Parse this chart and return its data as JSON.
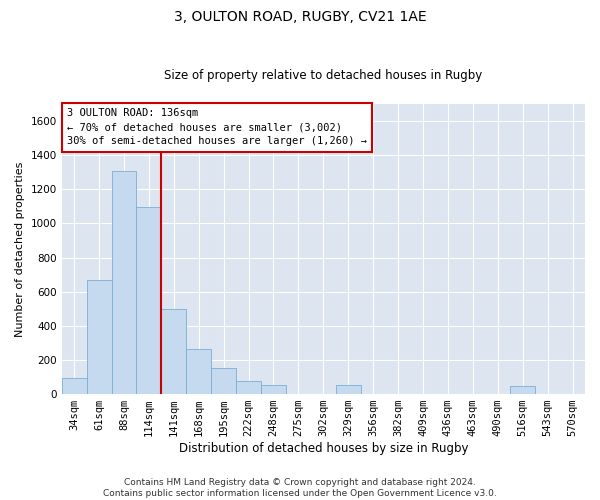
{
  "title": "3, OULTON ROAD, RUGBY, CV21 1AE",
  "subtitle": "Size of property relative to detached houses in Rugby",
  "xlabel": "Distribution of detached houses by size in Rugby",
  "ylabel": "Number of detached properties",
  "footer_line1": "Contains HM Land Registry data © Crown copyright and database right 2024.",
  "footer_line2": "Contains public sector information licensed under the Open Government Licence v3.0.",
  "annotation_line1": "3 OULTON ROAD: 136sqm",
  "annotation_line2": "← 70% of detached houses are smaller (3,002)",
  "annotation_line3": "30% of semi-detached houses are larger (1,260) →",
  "bar_color": "#c5d9ef",
  "bar_edge_color": "#7aafd4",
  "vline_color": "#cc0000",
  "background_color": "#dde5f0",
  "grid_color": "#ffffff",
  "categories": [
    "34sqm",
    "61sqm",
    "88sqm",
    "114sqm",
    "141sqm",
    "168sqm",
    "195sqm",
    "222sqm",
    "248sqm",
    "275sqm",
    "302sqm",
    "329sqm",
    "356sqm",
    "382sqm",
    "409sqm",
    "436sqm",
    "463sqm",
    "490sqm",
    "516sqm",
    "543sqm",
    "570sqm"
  ],
  "values": [
    95,
    670,
    1310,
    1095,
    500,
    265,
    155,
    75,
    55,
    0,
    0,
    55,
    0,
    0,
    0,
    0,
    0,
    0,
    45,
    0,
    0
  ],
  "vline_index": 3.5,
  "ylim": [
    0,
    1700
  ],
  "yticks": [
    0,
    200,
    400,
    600,
    800,
    1000,
    1200,
    1400,
    1600
  ],
  "title_fontsize": 10,
  "subtitle_fontsize": 8.5,
  "ylabel_fontsize": 8,
  "xlabel_fontsize": 8.5,
  "tick_fontsize": 7.5,
  "ann_fontsize": 7.5,
  "footer_fontsize": 6.5
}
